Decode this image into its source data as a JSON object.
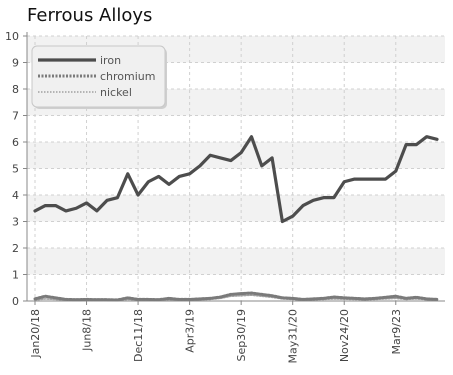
{
  "chart_data": {
    "type": "line",
    "title": "Ferrous Alloys",
    "xlabel": "",
    "ylabel": "",
    "ylim": [
      0,
      10
    ],
    "yticks": [
      0,
      1,
      2,
      3,
      4,
      5,
      6,
      7,
      8,
      9,
      10
    ],
    "x_tick_labels": [
      "Jan20/18",
      "Jun8/18",
      "Dec11/18",
      "Apr3/19",
      "Sep30/19",
      "May31/20",
      "Nov24/20",
      "Mar9/23"
    ],
    "grid": true,
    "legend_position": "top-left",
    "series": [
      {
        "name": "iron",
        "color": "#4d4d4d",
        "values": [
          3.4,
          3.6,
          3.6,
          3.4,
          3.5,
          3.7,
          3.4,
          3.8,
          3.9,
          4.8,
          4.0,
          4.5,
          4.7,
          4.4,
          4.7,
          4.8,
          5.1,
          5.5,
          5.4,
          5.3,
          5.6,
          6.2,
          5.1,
          5.4,
          3.0,
          3.2,
          3.6,
          3.8,
          3.9,
          3.9,
          4.5,
          4.6,
          4.6,
          4.6,
          4.6,
          4.9,
          5.9,
          5.9,
          6.2,
          6.1
        ]
      },
      {
        "name": "chromium",
        "color": "#7a7a7a",
        "values": [
          0.08,
          0.18,
          0.12,
          0.06,
          0.05,
          0.06,
          0.05,
          0.05,
          0.04,
          0.12,
          0.06,
          0.06,
          0.05,
          0.1,
          0.06,
          0.06,
          0.08,
          0.1,
          0.15,
          0.25,
          0.28,
          0.3,
          0.25,
          0.2,
          0.12,
          0.1,
          0.06,
          0.08,
          0.1,
          0.15,
          0.12,
          0.1,
          0.08,
          0.1,
          0.14,
          0.18,
          0.1,
          0.14,
          0.08,
          0.06
        ]
      },
      {
        "name": "nickel",
        "color": "#a0a0a0",
        "values": [
          0.04,
          0.08,
          0.06,
          0.03,
          0.03,
          0.04,
          0.03,
          0.03,
          0.03,
          0.06,
          0.04,
          0.04,
          0.03,
          0.05,
          0.04,
          0.04,
          0.05,
          0.06,
          0.1,
          0.18,
          0.2,
          0.22,
          0.18,
          0.14,
          0.08,
          0.06,
          0.04,
          0.05,
          0.06,
          0.08,
          0.07,
          0.06,
          0.05,
          0.06,
          0.08,
          0.1,
          0.06,
          0.08,
          0.05,
          0.04
        ]
      }
    ]
  }
}
